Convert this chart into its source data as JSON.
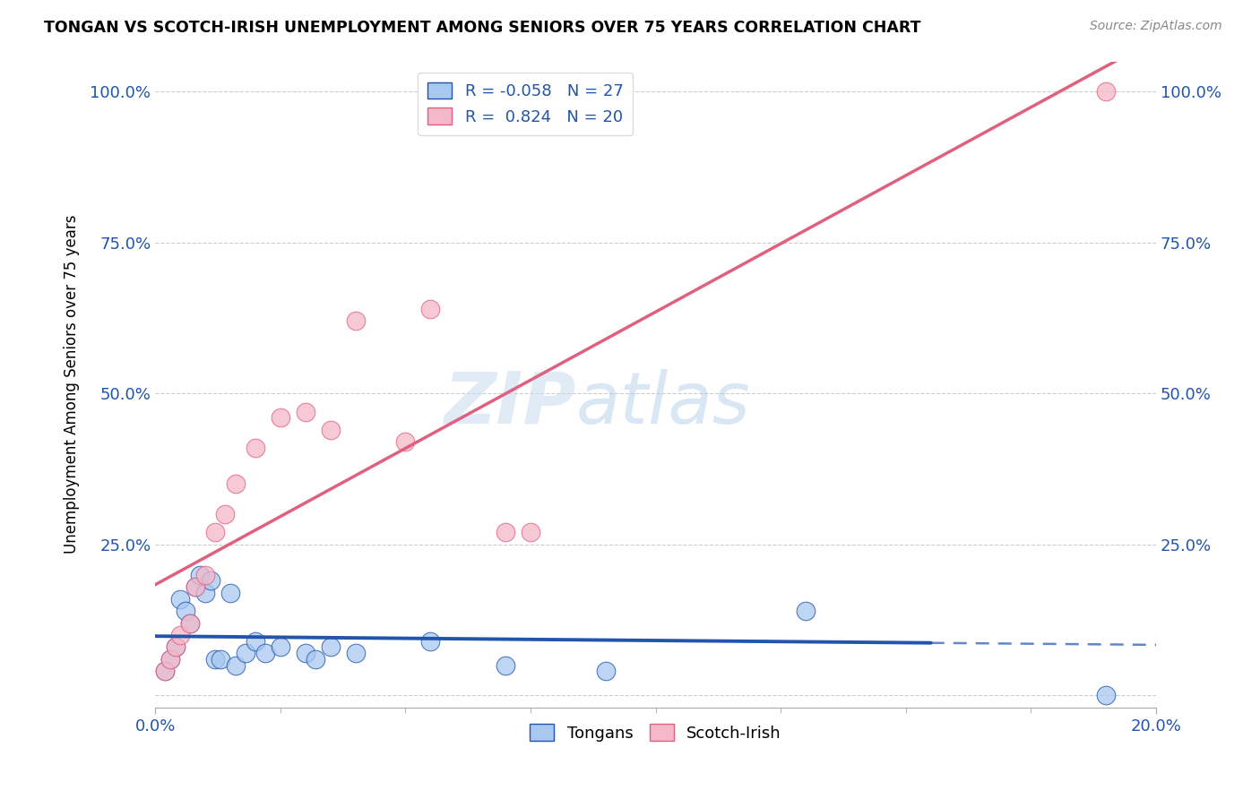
{
  "title": "TONGAN VS SCOTCH-IRISH UNEMPLOYMENT AMONG SENIORS OVER 75 YEARS CORRELATION CHART",
  "source": "Source: ZipAtlas.com",
  "ylabel": "Unemployment Among Seniors over 75 years",
  "legend_label1": "Tongans",
  "legend_label2": "Scotch-Irish",
  "r1": -0.058,
  "n1": 27,
  "r2": 0.824,
  "n2": 20,
  "blue_color": "#A8C8F0",
  "pink_color": "#F4B8C8",
  "blue_line_color": "#2255AA",
  "pink_line_color": "#E06080",
  "watermark_zip": "ZIP",
  "watermark_atlas": "atlas",
  "blue_points_x": [
    0.002,
    0.003,
    0.004,
    0.005,
    0.006,
    0.007,
    0.008,
    0.009,
    0.01,
    0.011,
    0.012,
    0.013,
    0.015,
    0.016,
    0.018,
    0.02,
    0.022,
    0.025,
    0.03,
    0.032,
    0.035,
    0.04,
    0.055,
    0.07,
    0.09,
    0.13,
    0.19
  ],
  "blue_points_y": [
    0.04,
    0.06,
    0.08,
    0.16,
    0.14,
    0.12,
    0.18,
    0.2,
    0.17,
    0.19,
    0.06,
    0.06,
    0.17,
    0.05,
    0.07,
    0.09,
    0.07,
    0.08,
    0.07,
    0.06,
    0.08,
    0.07,
    0.09,
    0.05,
    0.04,
    0.14,
    0.0
  ],
  "pink_points_x": [
    0.002,
    0.003,
    0.004,
    0.005,
    0.007,
    0.008,
    0.01,
    0.012,
    0.014,
    0.016,
    0.02,
    0.025,
    0.03,
    0.035,
    0.04,
    0.05,
    0.055,
    0.07,
    0.075,
    0.19
  ],
  "pink_points_y": [
    0.04,
    0.06,
    0.08,
    0.1,
    0.12,
    0.18,
    0.2,
    0.27,
    0.3,
    0.35,
    0.41,
    0.46,
    0.47,
    0.44,
    0.62,
    0.42,
    0.64,
    0.27,
    0.27,
    1.0
  ],
  "xlim": [
    0.0,
    0.2
  ],
  "ylim": [
    -0.02,
    1.05
  ],
  "xticks_minor": [
    0.025,
    0.05,
    0.075,
    0.1,
    0.125,
    0.15,
    0.175
  ],
  "yticks": [
    0.0,
    0.25,
    0.5,
    0.75,
    1.0
  ],
  "blue_line_solid_end": 0.155,
  "blue_line_dash_start": 0.155,
  "blue_line_end": 0.2
}
